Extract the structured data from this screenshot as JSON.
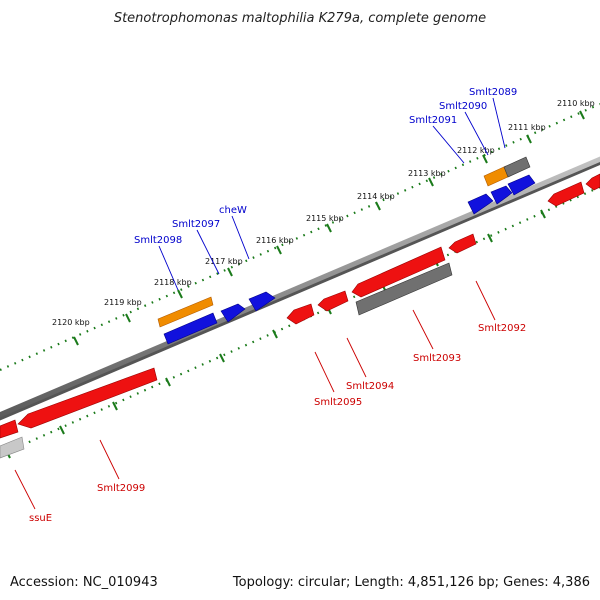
{
  "title": "Stenotrophomonas maltophilia K279a, complete genome",
  "footer": {
    "accession": "Accession: NC_010943",
    "summary": "Topology: circular; Length: 4,851,126 bp; Genes: 4,386"
  },
  "colors": {
    "forward_label": "#0000cc",
    "reverse_label": "#cc0000",
    "tick": "#1a7a1a",
    "backbone": "#888888",
    "red_gene": "#ee1111",
    "blue_gene": "#1111dd",
    "orange_gene": "#f08c00",
    "grey_gene": "#707070",
    "light_grey_gene": "#c8c8c8"
  },
  "ticks": [
    {
      "label": "2110 kbp"
    },
    {
      "label": "2111 kbp"
    },
    {
      "label": "2112 kbp"
    },
    {
      "label": "2113 kbp"
    },
    {
      "label": "2114 kbp"
    },
    {
      "label": "2115 kbp"
    },
    {
      "label": "2116 kbp"
    },
    {
      "label": "2117 kbp"
    },
    {
      "label": "2118 kbp"
    },
    {
      "label": "2119 kbp"
    },
    {
      "label": "2120 kbp"
    }
  ],
  "forward_labels": [
    {
      "name": "Smlt2089"
    },
    {
      "name": "Smlt2090"
    },
    {
      "name": "Smlt2091"
    },
    {
      "name": "cheW"
    },
    {
      "name": "Smlt2097"
    },
    {
      "name": "Smlt2098"
    }
  ],
  "reverse_labels": [
    {
      "name": "Smlt2092"
    },
    {
      "name": "Smlt2093"
    },
    {
      "name": "Smlt2094"
    },
    {
      "name": "Smlt2095"
    },
    {
      "name": "Smlt2099"
    },
    {
      "name": "ssuE"
    }
  ]
}
